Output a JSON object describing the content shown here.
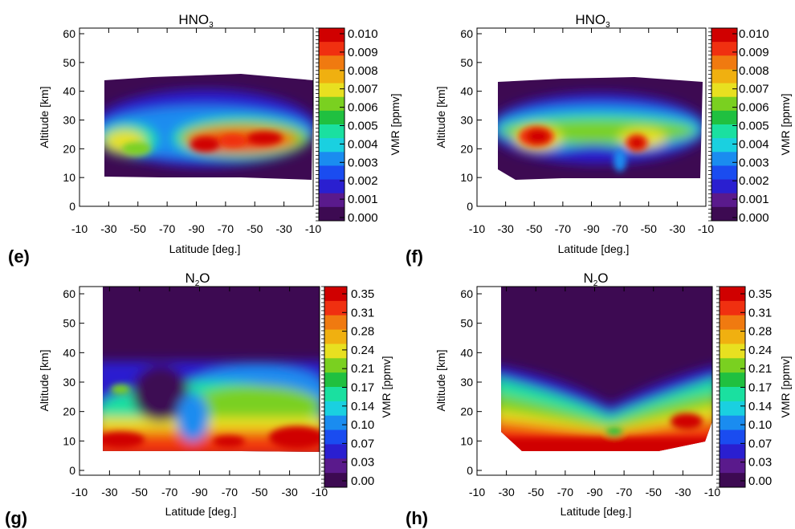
{
  "panels": [
    {
      "id": "e",
      "panel_label": "(e)",
      "title_main": "HNO",
      "title_sub": "3",
      "ylabel": "Altitude [km]",
      "xlabel": "Latitude [deg.]",
      "yticks": [
        "0",
        "10",
        "20",
        "30",
        "40",
        "50",
        "60"
      ],
      "xticks": [
        "-10",
        "-30",
        "-50",
        "-70",
        "-90",
        "-70",
        "-50",
        "-30",
        "-10"
      ],
      "colorbar_label": "VMR  [ppmv]",
      "colorbar_ticks": [
        "0.010",
        "0.009",
        "0.008",
        "0.007",
        "0.006",
        "0.005",
        "0.004",
        "0.003",
        "0.002",
        "0.001",
        "0.000"
      ]
    },
    {
      "id": "f",
      "panel_label": "(f)",
      "title_main": "HNO",
      "title_sub": "3",
      "ylabel": "Altitude [km]",
      "xlabel": "Latitude [deg.]",
      "yticks": [
        "0",
        "10",
        "20",
        "30",
        "40",
        "50",
        "60"
      ],
      "xticks": [
        "-10",
        "-30",
        "-50",
        "-70",
        "-90",
        "-70",
        "-50",
        "-30",
        "-10"
      ],
      "colorbar_label": "VMR  [ppmv]",
      "colorbar_ticks": [
        "0.010",
        "0.009",
        "0.008",
        "0.007",
        "0.006",
        "0.005",
        "0.004",
        "0.003",
        "0.002",
        "0.001",
        "0.000"
      ]
    },
    {
      "id": "g",
      "panel_label": "(g)",
      "title_main": "N",
      "title_sub": "2",
      "title_tail": "O",
      "ylabel": "Altitude [km]",
      "xlabel": "Latitude [deg.]",
      "yticks": [
        "0",
        "10",
        "20",
        "30",
        "40",
        "50",
        "60"
      ],
      "xticks": [
        "-10",
        "-30",
        "-50",
        "-70",
        "-90",
        "-70",
        "-50",
        "-30",
        "-10"
      ],
      "colorbar_label": "VMR  [ppmv]",
      "colorbar_ticks": [
        "0.35",
        "0.31",
        "0.28",
        "0.24",
        "0.21",
        "0.17",
        "0.14",
        "0.10",
        "0.07",
        "0.03",
        "0.00"
      ]
    },
    {
      "id": "h",
      "panel_label": "(h)",
      "title_main": "N",
      "title_sub": "2",
      "title_tail": "O",
      "ylabel": "Altitude [km]",
      "xlabel": "Latitude [deg.]",
      "yticks": [
        "0",
        "10",
        "20",
        "30",
        "40",
        "50",
        "60"
      ],
      "xticks": [
        "-10",
        "-30",
        "-50",
        "-70",
        "-90",
        "-70",
        "-50",
        "-30",
        "-10"
      ],
      "colorbar_label": "VMR  [ppmv]",
      "colorbar_ticks": [
        "0.35",
        "0.31",
        "0.28",
        "0.24",
        "0.21",
        "0.17",
        "0.14",
        "0.10",
        "0.07",
        "0.03",
        "0.00"
      ]
    }
  ],
  "colors": {
    "scale": [
      "#3d0a52",
      "#5a1a8c",
      "#2a1fd0",
      "#1a4cf0",
      "#1a8cf0",
      "#1ad0e0",
      "#1ae0a0",
      "#20c040",
      "#7ad020",
      "#e8e020",
      "#f0b010",
      "#f07a10",
      "#f03010",
      "#d00000"
    ]
  },
  "chart_data": [
    {
      "type": "heatmap",
      "panel": "(e)",
      "title": "HNO3",
      "xlabel": "Latitude [deg.]",
      "ylabel": "Altitude [km]",
      "ylim": [
        0,
        60
      ],
      "colorbar_range": [
        0.0,
        0.01
      ],
      "colorbar_unit": "ppmv",
      "features": [
        {
          "x": -40,
          "y": 24,
          "value": 0.007
        },
        {
          "x": -80,
          "y": 21,
          "value": 0.0095
        },
        {
          "x": -50,
          "y": 21,
          "value": 0.009
        },
        {
          "x": -30,
          "y": 22,
          "value": 0.008
        }
      ]
    },
    {
      "type": "heatmap",
      "panel": "(f)",
      "title": "HNO3",
      "xlabel": "Latitude [deg.]",
      "ylabel": "Altitude [km]",
      "ylim": [
        0,
        60
      ],
      "colorbar_range": [
        0.0,
        0.01
      ],
      "colorbar_unit": "ppmv",
      "features": [
        {
          "x": -50,
          "y": 23,
          "value": 0.0095
        },
        {
          "x": -60,
          "y": 22,
          "value": 0.0095
        },
        {
          "x": -30,
          "y": 25,
          "value": 0.007
        }
      ]
    },
    {
      "type": "heatmap",
      "panel": "(g)",
      "title": "N2O",
      "xlabel": "Latitude [deg.]",
      "ylabel": "Altitude [km]",
      "ylim": [
        0,
        60
      ],
      "colorbar_range": [
        0.0,
        0.35
      ],
      "colorbar_unit": "ppmv",
      "features": [
        {
          "x": -30,
          "y": 9,
          "value": 0.31
        },
        {
          "x": -30,
          "y": 14,
          "value": 0.28
        },
        {
          "x": -70,
          "y": 24,
          "value": 0.17
        },
        {
          "x": -20,
          "y": 10,
          "value": 0.35
        }
      ]
    },
    {
      "type": "heatmap",
      "panel": "(h)",
      "title": "N2O",
      "xlabel": "Latitude [deg.]",
      "ylabel": "Altitude [km]",
      "ylim": [
        0,
        60
      ],
      "colorbar_range": [
        0.0,
        0.35
      ],
      "colorbar_unit": "ppmv",
      "features": [
        {
          "x": -70,
          "y": 9,
          "value": 0.35
        },
        {
          "x": -50,
          "y": 16,
          "value": 0.28
        },
        {
          "x": -90,
          "y": 22,
          "value": 0.14
        },
        {
          "x": -30,
          "y": 28,
          "value": 0.17
        }
      ]
    }
  ]
}
